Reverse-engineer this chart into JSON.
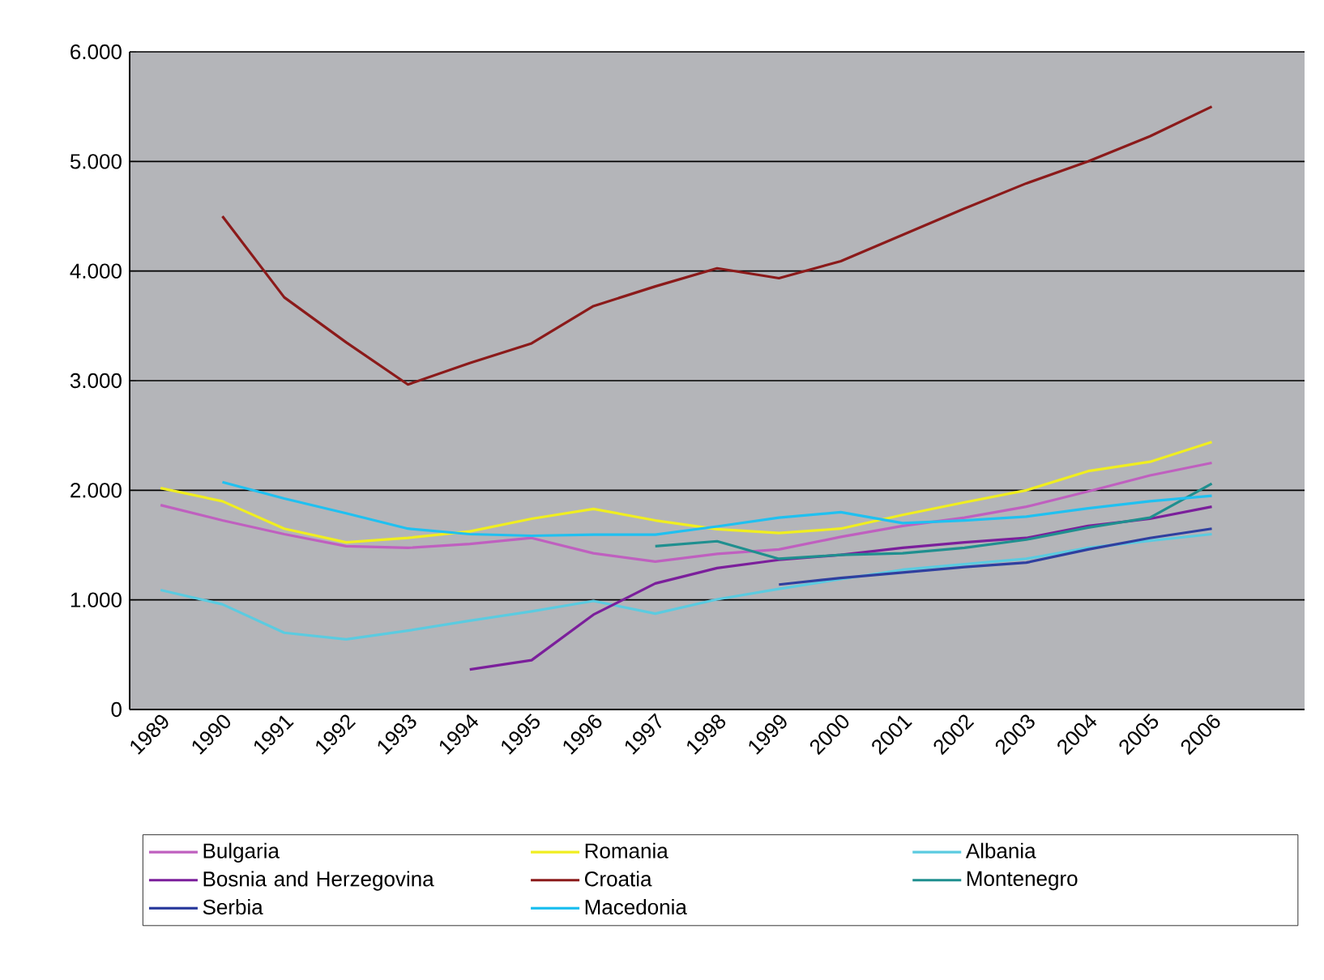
{
  "chart_data": {
    "type": "line",
    "categories": [
      "1989",
      "1990",
      "1991",
      "1992",
      "1993",
      "1994",
      "1995",
      "1996",
      "1997",
      "1998",
      "1999",
      "2000",
      "2001",
      "2002",
      "2003",
      "2004",
      "2005",
      "2006",
      null
    ],
    "series": [
      {
        "name": "Bulgaria",
        "color": "#bf60bf",
        "values": [
          1865,
          1725,
          1600,
          1490,
          1475,
          1510,
          1565,
          1425,
          1350,
          1420,
          1460,
          1575,
          1675,
          1750,
          1850,
          1990,
          2135,
          2250,
          null
        ]
      },
      {
        "name": "Romania",
        "color": "#f0ee20",
        "values": [
          2020,
          1900,
          1650,
          1525,
          1565,
          1625,
          1740,
          1830,
          1725,
          1645,
          1610,
          1650,
          1775,
          1890,
          2000,
          2175,
          2260,
          2440,
          null
        ]
      },
      {
        "name": "Albania",
        "color": "#5bcbe0",
        "values": [
          1090,
          960,
          700,
          640,
          720,
          810,
          895,
          990,
          875,
          1005,
          1100,
          1190,
          1275,
          1325,
          1375,
          1475,
          1540,
          1600,
          null
        ]
      },
      {
        "name": "Bosnia and Herzegovina",
        "color": "#7b1f9b",
        "values": [
          null,
          null,
          null,
          null,
          null,
          365,
          450,
          865,
          1150,
          1290,
          1365,
          1410,
          1475,
          1525,
          1565,
          1675,
          1740,
          1850,
          null
        ]
      },
      {
        "name": "Croatia",
        "color": "#8b1a1a",
        "values": [
          null,
          4500,
          3760,
          3350,
          2965,
          3160,
          3340,
          3680,
          3860,
          4025,
          3935,
          4090,
          4330,
          4570,
          4800,
          5000,
          5230,
          5500,
          null
        ]
      },
      {
        "name": "Montenegro",
        "color": "#1f8f8f",
        "values": [
          null,
          null,
          null,
          null,
          null,
          null,
          null,
          null,
          1490,
          1535,
          1375,
          1410,
          1425,
          1475,
          1550,
          1660,
          1750,
          2060,
          null
        ]
      },
      {
        "name": "Serbia",
        "color": "#2f3f9f",
        "values": [
          null,
          null,
          null,
          null,
          null,
          null,
          null,
          null,
          null,
          null,
          1140,
          1200,
          1250,
          1300,
          1340,
          1460,
          1565,
          1650,
          null
        ]
      },
      {
        "name": "Macedonia",
        "color": "#20c0f0",
        "values": [
          null,
          2075,
          1925,
          1790,
          1650,
          1600,
          1585,
          1595,
          1595,
          1670,
          1750,
          1800,
          1700,
          1725,
          1760,
          1835,
          1900,
          1950,
          null
        ]
      }
    ],
    "ylim": [
      0,
      6000
    ],
    "yticks": [
      0,
      {
        "value": 1000,
        "label": "1.000"
      },
      {
        "value": 2000,
        "label": "2.000"
      },
      {
        "value": 3000,
        "label": "3.000"
      },
      {
        "value": 4000,
        "label": "4.000"
      },
      {
        "value": 5000,
        "label": "5.000"
      },
      {
        "value": 6000,
        "label": "6.000"
      }
    ],
    "grid": "y",
    "legend": "bottom",
    "marker": "none",
    "line_style": "solid"
  }
}
